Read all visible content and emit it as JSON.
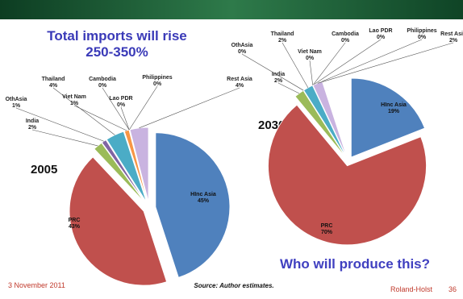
{
  "header": {
    "title_lines": [
      "Total imports will rise",
      "250-350%"
    ],
    "question": "Who will produce this?"
  },
  "chart_data": [
    {
      "type": "pie",
      "title": "2005",
      "categories": [
        "HInc Asia",
        "PRC",
        "India",
        "OthAsia",
        "Thailand",
        "Viet Nam",
        "Cambodia",
        "Lao PDR",
        "Philippines",
        "Rest Asia"
      ],
      "values": [
        45,
        43,
        2,
        1,
        4,
        1,
        0,
        0,
        0,
        4
      ],
      "value_labels": [
        "45%",
        "43%",
        "2%",
        "1%",
        "4%",
        "1%",
        "0%",
        "0%",
        "0%",
        "4%"
      ],
      "colors": [
        "#4f81bd",
        "#c0504d",
        "#9bbb59",
        "#8064a2",
        "#4bacc6",
        "#f79646",
        "#2c4d75",
        "#772c2a",
        "#5f7530",
        "#c9b3e0"
      ]
    },
    {
      "type": "pie",
      "title": "2030",
      "categories": [
        "HInc Asia",
        "PRC",
        "India",
        "OthAsia",
        "Thailand",
        "Viet Nam",
        "Cambodia",
        "Lao PDR",
        "Philippines",
        "Rest Asia"
      ],
      "values": [
        19,
        70,
        2,
        0,
        2,
        0,
        0,
        0,
        0,
        2
      ],
      "value_labels": [
        "19%",
        "70%",
        "2%",
        "0%",
        "2%",
        "0%",
        "0%",
        "0%",
        "0%",
        "2%"
      ],
      "colors": [
        "#4f81bd",
        "#c0504d",
        "#9bbb59",
        "#8064a2",
        "#4bacc6",
        "#f79646",
        "#2c4d75",
        "#772c2a",
        "#5f7530",
        "#c9b3e0"
      ]
    }
  ],
  "footer": {
    "date": "3 November 2011",
    "source": "Source: Author estimates.",
    "author": "Roland-Holst",
    "page": "36"
  }
}
